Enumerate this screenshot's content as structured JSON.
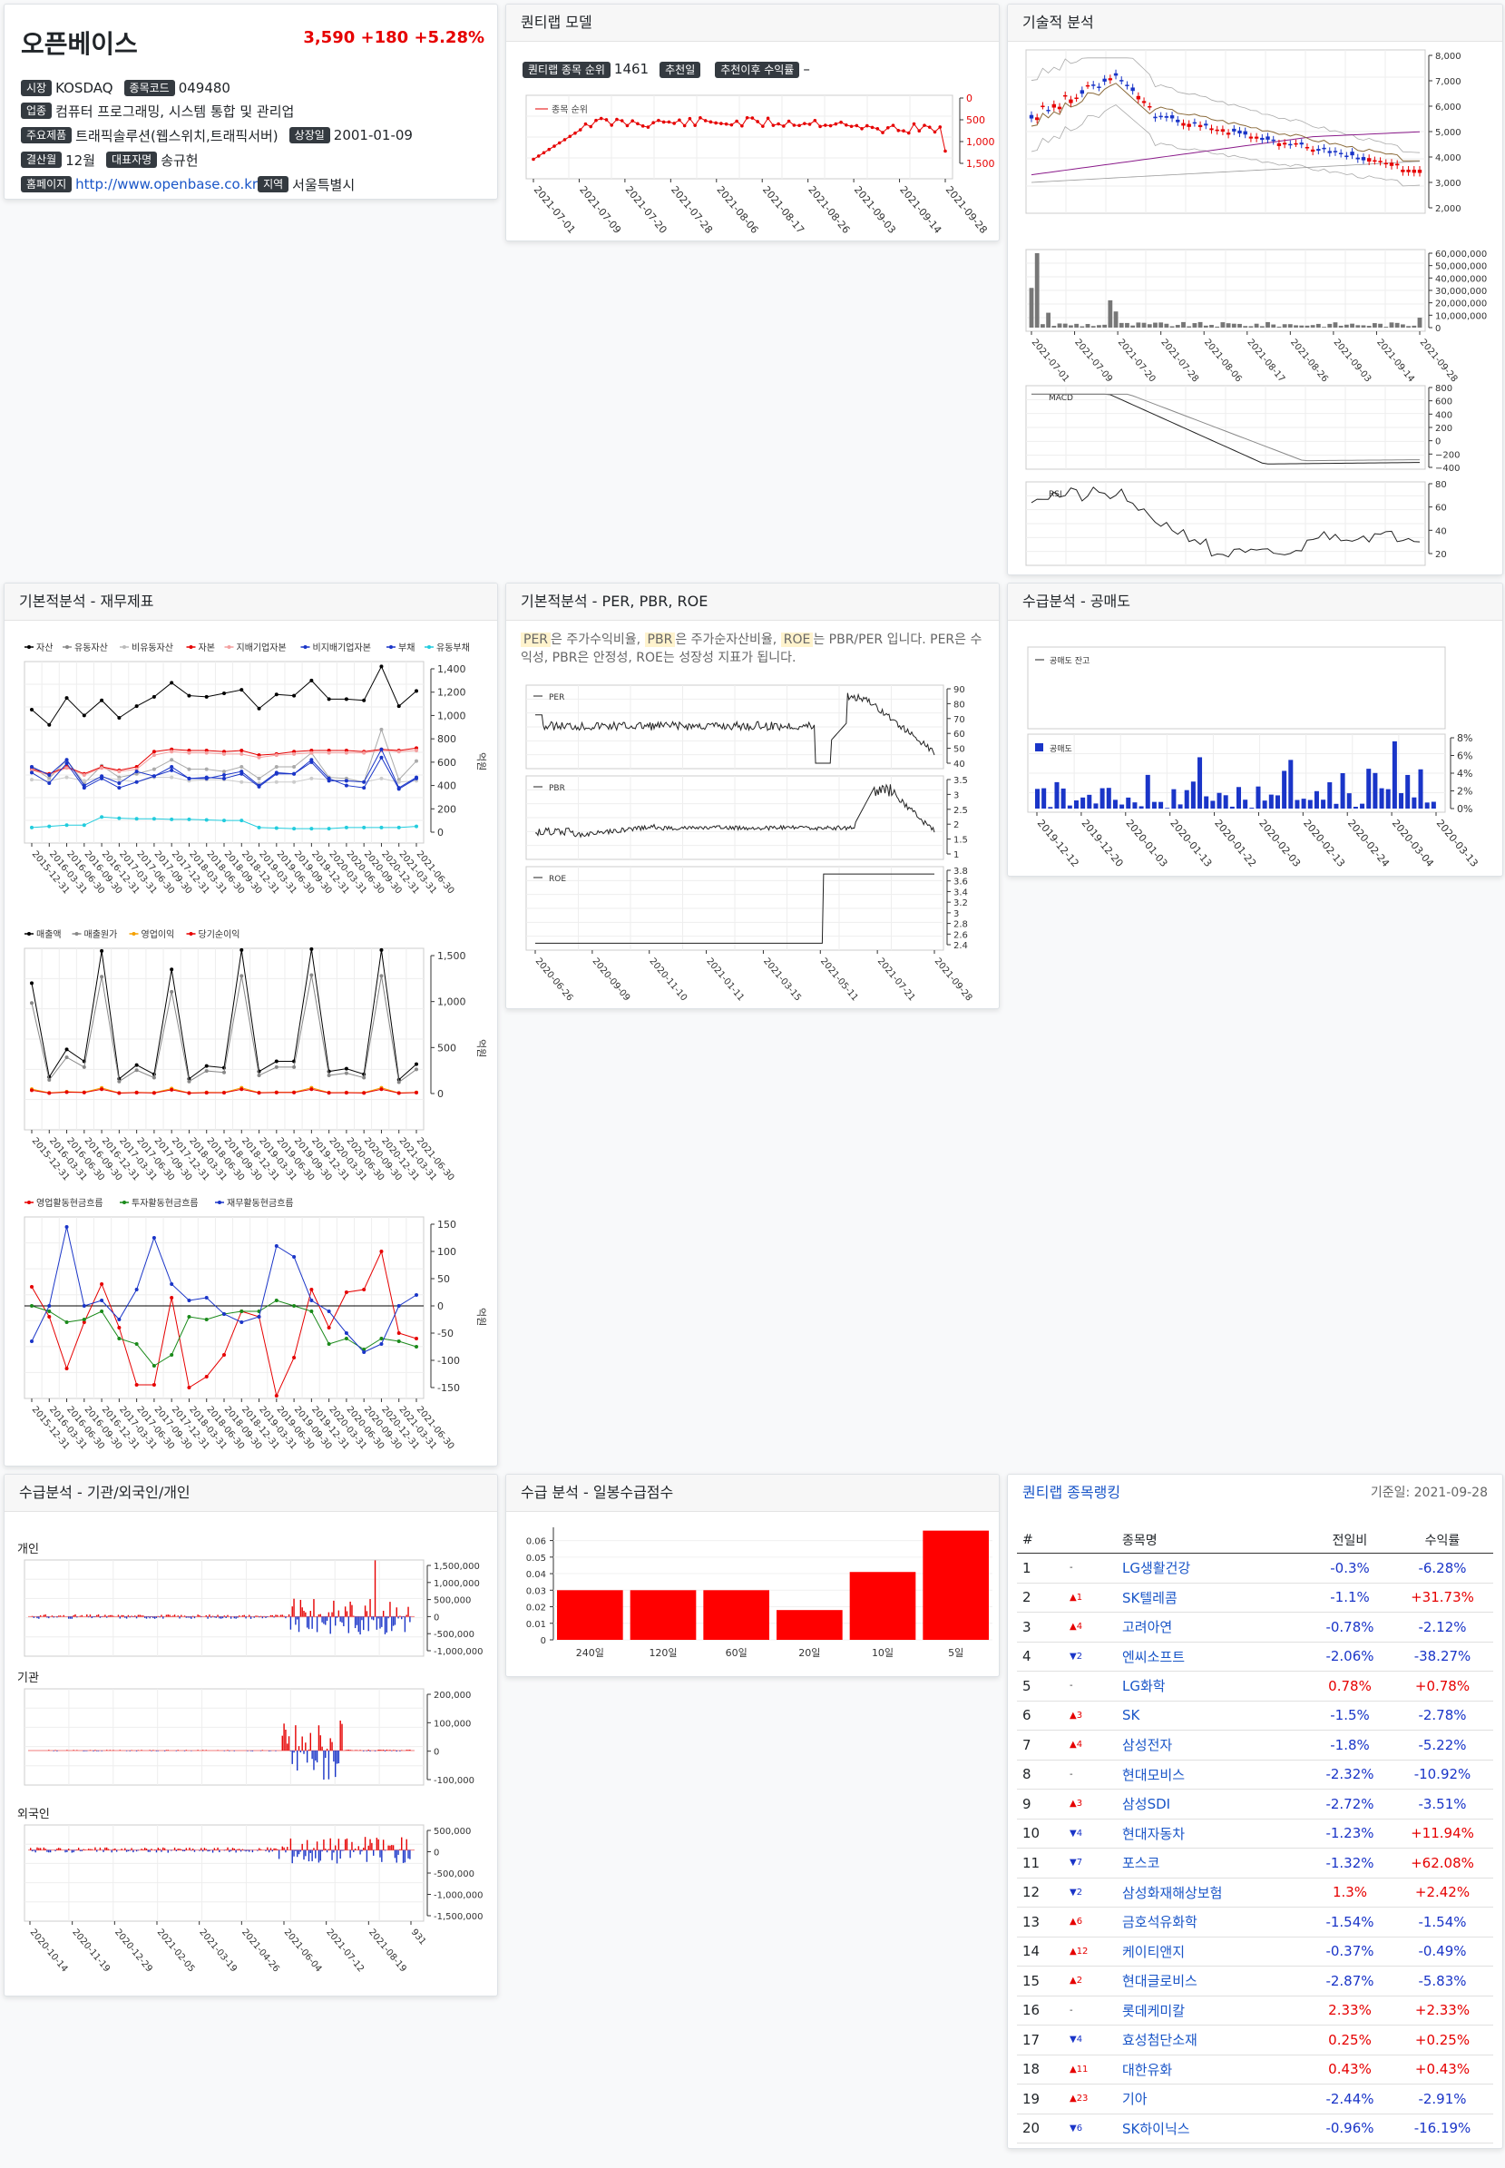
{
  "company": {
    "name": "오픈베이스",
    "price": "3,590",
    "change": "+180",
    "change_pct": "+5.28%",
    "market_label": "시장",
    "market": "KOSDAQ",
    "code_label": "종목코드",
    "code": "049480",
    "industry_label": "업종",
    "industry": "컴퓨터 프로그래밍, 시스템 통합 및 관리업",
    "product_label": "주요제품",
    "product": "트래픽솔루션(웹스위치,트래픽서버)",
    "listing_label": "상장일",
    "listing": "2001-01-09",
    "fiscal_label": "결산월",
    "fiscal": "12월",
    "ceo_label": "대표자명",
    "ceo": "송규헌",
    "homepage_label": "홈페이지",
    "homepage": "http://www.openbase.co.kr",
    "region_label": "지역",
    "region": "서울특별시"
  },
  "quant": {
    "title": "퀀티랩 모델",
    "rank_label": "퀀티랩 종목 순위",
    "rank": "1461",
    "rec_label": "추천일",
    "rec": "",
    "return_label": "추천이후 수익률",
    "return": "–",
    "legend": "종목 순위",
    "y_ticks": [
      "0",
      "500",
      "1,000",
      "1,500"
    ],
    "x_ticks": [
      "2021-07-01",
      "2021-07-09",
      "2021-07-20",
      "2021-07-28",
      "2021-08-06",
      "2021-08-17",
      "2021-08-26",
      "2021-09-03",
      "2021-09-14",
      "2021-09-28"
    ]
  },
  "tech": {
    "title": "기술적 분석",
    "price_ticks": [
      "8,000",
      "7,000",
      "6,000",
      "5,000",
      "4,000",
      "3,000",
      "2,000"
    ],
    "vol_ticks": [
      "60,000,000",
      "50,000,000",
      "40,000,000",
      "30,000,000",
      "20,000,000",
      "10,000,000",
      "0"
    ],
    "x_ticks": [
      "2021-07-01",
      "2021-07-09",
      "2021-07-20",
      "2021-07-28",
      "2021-08-06",
      "2021-08-17",
      "2021-08-26",
      "2021-09-03",
      "2021-09-14",
      "2021-09-28"
    ],
    "macd_label": "MACD",
    "macd_ticks": [
      "800",
      "600",
      "400",
      "200",
      "0",
      "−200",
      "−400"
    ],
    "rsi_label": "RSI",
    "rsi_ticks": [
      "80",
      "60",
      "40",
      "20"
    ]
  },
  "fin": {
    "title": "기본적분석 - 재무제표",
    "legend1": [
      "자산",
      "유동자산",
      "비유동자산",
      "자본",
      "지배기업자본",
      "비지배기업자본",
      "부채",
      "유동부채"
    ],
    "legend1_colors": [
      "#000000",
      "#888888",
      "#bbbbbb",
      "#e60000",
      "#f4a0a0",
      "#1a35c8",
      "#1a35c8",
      "#22ccdd"
    ],
    "y1_ticks": [
      "1,400",
      "1,200",
      "1,000",
      "800",
      "600",
      "400",
      "200",
      "0"
    ],
    "legend2": [
      "매출액",
      "매출원가",
      "영업이익",
      "당기순이익"
    ],
    "legend2_colors": [
      "#000000",
      "#888888",
      "#f5a000",
      "#e60000"
    ],
    "y2_ticks": [
      "1,500",
      "1,000",
      "500",
      "0"
    ],
    "legend3": [
      "영업활동현금흐름",
      "투자활동현금흐름",
      "재무활동현금흐름"
    ],
    "legend3_colors": [
      "#e60000",
      "#1a8a1a",
      "#1a35c8"
    ],
    "y3_ticks": [
      "150",
      "100",
      "50",
      "0",
      "-50",
      "-100",
      "-150"
    ],
    "unit": "억원",
    "x_ticks": [
      "2015-12-31",
      "2016-03-31",
      "2016-06-30",
      "2016-09-30",
      "2016-12-31",
      "2017-03-31",
      "2017-06-30",
      "2017-09-30",
      "2017-12-31",
      "2018-03-31",
      "2018-06-30",
      "2018-09-30",
      "2018-12-31",
      "2019-03-31",
      "2019-06-30",
      "2019-09-30",
      "2019-12-31",
      "2020-03-31",
      "2020-06-30",
      "2020-09-30",
      "2020-12-31",
      "2021-03-31",
      "2021-06-30"
    ]
  },
  "per": {
    "title": "기본적분석 - PER, PBR, ROE",
    "desc1": "PER",
    "desc2": "은 주가수익비율,",
    "desc3": "PBR",
    "desc4": "은 주가순자산비율,",
    "desc5": "ROE",
    "desc6": "는 PBR/PER 입니다. PER은 수익성, PBR은 안정성, ROE는 성장성 지표가 됩니다.",
    "per_label": "PER",
    "per_ticks": [
      "90",
      "80",
      "70",
      "60",
      "50",
      "40"
    ],
    "pbr_label": "PBR",
    "pbr_ticks": [
      "3.5",
      "3",
      "2.5",
      "2",
      "1.5",
      "1"
    ],
    "roe_label": "ROE",
    "roe_ticks": [
      "3.8",
      "3.6",
      "3.4",
      "3.2",
      "3",
      "2.8",
      "2.6",
      "2.4"
    ],
    "x_ticks": [
      "2020-06-26",
      "2020-09-09",
      "2020-11-10",
      "2021-01-11",
      "2021-03-15",
      "2021-05-11",
      "2021-07-21",
      "2021-09-28"
    ]
  },
  "short": {
    "title": "수급분석 - 공매도",
    "legend1": "공매도 잔고",
    "legend2": "공매도",
    "y_ticks": [
      "8%",
      "6%",
      "4%",
      "2%",
      "0%"
    ],
    "x_ticks": [
      "2019-12-12",
      "2019-12-20",
      "2020-01-03",
      "2020-01-13",
      "2020-01-22",
      "2020-02-03",
      "2020-02-13",
      "2020-02-24",
      "2020-03-04",
      "2020-03-13"
    ]
  },
  "supply": {
    "title": "수급분석 - 기관/외국인/개인",
    "g1": "개인",
    "g1_ticks": [
      "1,500,000",
      "1,000,000",
      "500,000",
      "0",
      "-500,000",
      "-1,000,000"
    ],
    "g2": "기관",
    "g2_ticks": [
      "200,000",
      "100,000",
      "0",
      "-100,000"
    ],
    "g3": "외국인",
    "g3_ticks": [
      "500,000",
      "0",
      "-500,000",
      "-1,000,000",
      "-1,500,000"
    ],
    "x_ticks": [
      "2020-10-14",
      "2020-11-19",
      "2020-12-29",
      "2021-02-05",
      "2021-03-19",
      "2021-04-26",
      "2021-06-04",
      "2021-07-12",
      "2021-08-19",
      "931"
    ]
  },
  "score": {
    "title": "수급 분석 - 일봉수급점수",
    "y_ticks": [
      "0.06",
      "0.05",
      "0.04",
      "0.03",
      "0.02",
      "0.01",
      "0"
    ],
    "chart_data": {
      "type": "bar",
      "categories": [
        "240일",
        "120일",
        "60일",
        "20일",
        "10일",
        "5일"
      ],
      "values": [
        0.03,
        0.03,
        0.03,
        0.018,
        0.041,
        0.066
      ],
      "ylim": [
        0,
        0.068
      ]
    }
  },
  "ranking": {
    "title": "퀀티랩 종목랭킹",
    "date_label": "기준일: 2021-09-28",
    "headers": [
      "#",
      "종목명",
      "전일비",
      "수익률"
    ],
    "rows": [
      {
        "n": "1",
        "mv": "-",
        "dir": "none",
        "name": "LG생활건강",
        "chg": "-0.3%",
        "ret": "-6.28%"
      },
      {
        "n": "2",
        "mv": "▲1",
        "dir": "up",
        "name": "SK텔레콤",
        "chg": "-1.1%",
        "ret": "+31.73%"
      },
      {
        "n": "3",
        "mv": "▲4",
        "dir": "up",
        "name": "고려아연",
        "chg": "-0.78%",
        "ret": "-2.12%"
      },
      {
        "n": "4",
        "mv": "▼2",
        "dir": "down",
        "name": "엔씨소프트",
        "chg": "-2.06%",
        "ret": "-38.27%"
      },
      {
        "n": "5",
        "mv": "-",
        "dir": "none",
        "name": "LG화학",
        "chg": "0.78%",
        "ret": "+0.78%"
      },
      {
        "n": "6",
        "mv": "▲3",
        "dir": "up",
        "name": "SK",
        "chg": "-1.5%",
        "ret": "-2.78%"
      },
      {
        "n": "7",
        "mv": "▲4",
        "dir": "up",
        "name": "삼성전자",
        "chg": "-1.8%",
        "ret": "-5.22%"
      },
      {
        "n": "8",
        "mv": "-",
        "dir": "none",
        "name": "현대모비스",
        "chg": "-2.32%",
        "ret": "-10.92%"
      },
      {
        "n": "9",
        "mv": "▲3",
        "dir": "up",
        "name": "삼성SDI",
        "chg": "-2.72%",
        "ret": "-3.51%"
      },
      {
        "n": "10",
        "mv": "▼4",
        "dir": "down",
        "name": "현대자동차",
        "chg": "-1.23%",
        "ret": "+11.94%"
      },
      {
        "n": "11",
        "mv": "▼7",
        "dir": "down",
        "name": "포스코",
        "chg": "-1.32%",
        "ret": "+62.08%"
      },
      {
        "n": "12",
        "mv": "▼2",
        "dir": "down",
        "name": "삼성화재해상보험",
        "chg": "1.3%",
        "ret": "+2.42%"
      },
      {
        "n": "13",
        "mv": "▲6",
        "dir": "up",
        "name": "금호석유화학",
        "chg": "-1.54%",
        "ret": "-1.54%"
      },
      {
        "n": "14",
        "mv": "▲12",
        "dir": "up",
        "name": "케이티앤지",
        "chg": "-0.37%",
        "ret": "-0.49%"
      },
      {
        "n": "15",
        "mv": "▲2",
        "dir": "up",
        "name": "현대글로비스",
        "chg": "-2.87%",
        "ret": "-5.83%"
      },
      {
        "n": "16",
        "mv": "-",
        "dir": "none",
        "name": "롯데케미칼",
        "chg": "2.33%",
        "ret": "+2.33%"
      },
      {
        "n": "17",
        "mv": "▼4",
        "dir": "down",
        "name": "효성첨단소재",
        "chg": "0.25%",
        "ret": "+0.25%"
      },
      {
        "n": "18",
        "mv": "▲11",
        "dir": "up",
        "name": "대한유화",
        "chg": "0.43%",
        "ret": "+0.43%"
      },
      {
        "n": "19",
        "mv": "▲23",
        "dir": "up",
        "name": "기아",
        "chg": "-2.44%",
        "ret": "-2.91%"
      },
      {
        "n": "20",
        "mv": "▼6",
        "dir": "down",
        "name": "SK하이닉스",
        "chg": "-0.96%",
        "ret": "-16.19%"
      }
    ]
  }
}
